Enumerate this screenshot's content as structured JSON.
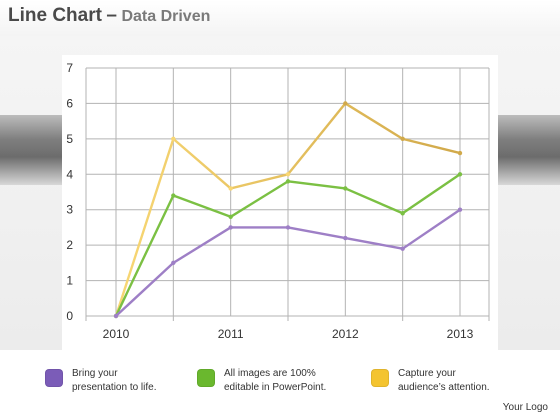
{
  "header": {
    "title": "Line Chart",
    "separator": "–",
    "subtitle": "Data Driven"
  },
  "chart_data": {
    "type": "line",
    "title": "",
    "xlabel": "",
    "ylabel": "",
    "ylim": [
      0,
      7
    ],
    "yticks": [
      "0",
      "1",
      "2",
      "3",
      "4",
      "5",
      "6",
      "7"
    ],
    "xtick_labels": [
      "2010",
      "2011",
      "2012",
      "2013"
    ],
    "x": [
      2010,
      2010.5,
      2011,
      2011.5,
      2012,
      2012.5,
      2013
    ],
    "grid": true,
    "series": [
      {
        "color": "#9e7fc6",
        "values": [
          0,
          1.5,
          2.5,
          2.5,
          2.2,
          1.9,
          3.0
        ]
      },
      {
        "color": "#7bc043",
        "values": [
          0,
          3.4,
          2.8,
          3.8,
          3.6,
          2.9,
          4.0
        ]
      },
      {
        "color_start": "#f8d774",
        "color_end": "#d1a94a",
        "values": [
          0,
          5.0,
          3.6,
          4.0,
          6.0,
          5.0,
          4.6
        ]
      }
    ]
  },
  "legend": [
    {
      "color": "#7b5cb8",
      "text": "Bring your\npresentation to life."
    },
    {
      "color": "#6ab82e",
      "text": "All images are 100%\neditable in PowerPoint."
    },
    {
      "color": "#f4c430",
      "text": "Capture your\naudience’s attention."
    }
  ],
  "footer": {
    "logo_text": "Your Logo"
  }
}
